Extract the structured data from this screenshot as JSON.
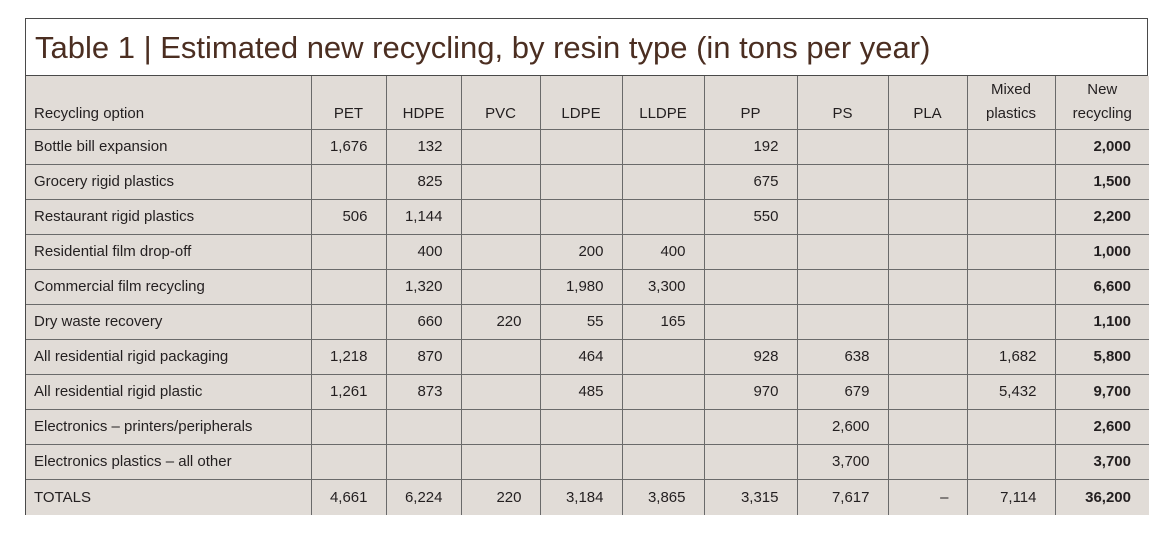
{
  "title": "Table 1 | Estimated new recycling, by resin type (in tons per year)",
  "headers": [
    "Recycling option",
    "PET",
    "HDPE",
    "PVC",
    "LDPE",
    "LLDPE",
    "PP",
    "PS",
    "PLA",
    "Mixed plastics",
    "New recycling"
  ],
  "headers_top": [
    "",
    "",
    "",
    "",
    "",
    "",
    "",
    "",
    "",
    "Mixed",
    "New"
  ],
  "headers_bottom": [
    "Recycling option",
    "PET",
    "HDPE",
    "PVC",
    "LDPE",
    "LLDPE",
    "PP",
    "PS",
    "PLA",
    "plastics",
    "recycling"
  ],
  "rows": [
    [
      "Bottle bill expansion",
      "1,676",
      "132",
      "",
      "",
      "",
      "192",
      "",
      "",
      "",
      "2,000"
    ],
    [
      "Grocery rigid plastics",
      "",
      "825",
      "",
      "",
      "",
      "675",
      "",
      "",
      "",
      "1,500"
    ],
    [
      "Restaurant rigid plastics",
      "506",
      "1,144",
      "",
      "",
      "",
      "550",
      "",
      "",
      "",
      "2,200"
    ],
    [
      "Residential film drop-off",
      "",
      "400",
      "",
      "200",
      "400",
      "",
      "",
      "",
      "",
      "1,000"
    ],
    [
      "Commercial film recycling",
      "",
      "1,320",
      "",
      "1,980",
      "3,300",
      "",
      "",
      "",
      "",
      "6,600"
    ],
    [
      "Dry waste recovery",
      "",
      "660",
      "220",
      "55",
      "165",
      "",
      "",
      "",
      "",
      "1,100"
    ],
    [
      "All residential rigid packaging",
      "1,218",
      "870",
      "",
      "464",
      "",
      "928",
      "638",
      "",
      "1,682",
      "5,800"
    ],
    [
      "All residential rigid plastic",
      "1,261",
      "873",
      "",
      "485",
      "",
      "970",
      "679",
      "",
      "5,432",
      "9,700"
    ],
    [
      "Electronics – printers/peripherals",
      "",
      "",
      "",
      "",
      "",
      "",
      "2,600",
      "",
      "",
      "2,600"
    ],
    [
      "Electronics plastics – all other",
      "",
      "",
      "",
      "",
      "",
      "",
      "3,700",
      "",
      "",
      "3,700"
    ],
    [
      "TOTALS",
      "4,661",
      "6,224",
      "220",
      "3,184",
      "3,865",
      "3,315",
      "7,617",
      "–",
      "7,114",
      "36,200"
    ]
  ]
}
